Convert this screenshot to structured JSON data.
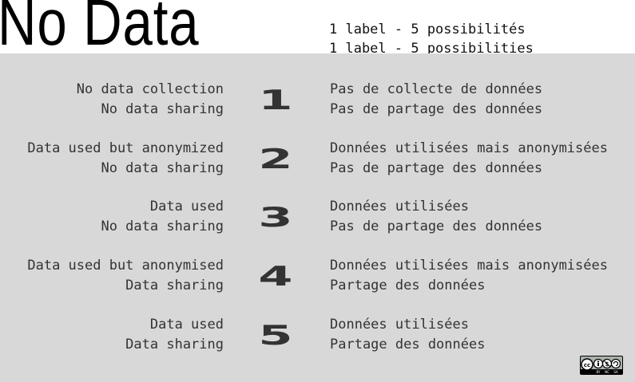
{
  "header": {
    "title": "No Data",
    "subtitle_fr": "1 label - 5 possibilités",
    "subtitle_en": "1 label - 5 possibilities"
  },
  "rows": [
    {
      "number": "1",
      "en_line1": "No data collection",
      "en_line2": "No data sharing",
      "fr_line1": "Pas de collecte de données",
      "fr_line2": "Pas de partage des données"
    },
    {
      "number": "2",
      "en_line1": "Data used but anonymized",
      "en_line2": "No data sharing",
      "fr_line1": "Données utilisées mais anonymisées",
      "fr_line2": "Pas de partage des données"
    },
    {
      "number": "3",
      "en_line1": "Data used",
      "en_line2": "No data sharing",
      "fr_line1": "Données utilisées",
      "fr_line2": "Pas de partage des données"
    },
    {
      "number": "4",
      "en_line1": "Data used but anonymised",
      "en_line2": "Data sharing",
      "fr_line1": "Données utilisées mais anonymisées",
      "fr_line2": "Partage des données"
    },
    {
      "number": "5",
      "en_line1": "Data used",
      "en_line2": "Data sharing",
      "fr_line1": "Données utilisées",
      "fr_line2": "Partage des données"
    }
  ],
  "license": {
    "icon": "cc-by-nc-sa-icon",
    "by": "BY",
    "nc": "NC",
    "sa": "SA"
  },
  "colors": {
    "panel_bg": "#d8d8d8",
    "text": "#333333",
    "title": "#000000"
  }
}
